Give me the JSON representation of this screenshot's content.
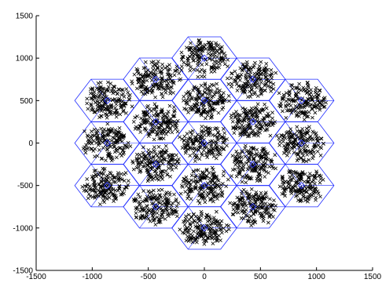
{
  "chart_data": {
    "type": "scatter",
    "title": "",
    "xlabel": "",
    "ylabel": "",
    "xlim": [
      -1500,
      1500
    ],
    "ylim": [
      -1500,
      1500
    ],
    "xticks": [
      -1500,
      -1000,
      -500,
      0,
      500,
      1000,
      1500
    ],
    "yticks": [
      -1500,
      -1000,
      -500,
      0,
      500,
      1000,
      1500
    ],
    "xtick_labels": [
      "-1500",
      "-1000",
      "-500",
      "0",
      "500",
      "1000",
      "1500"
    ],
    "ytick_labels": [
      "-1500",
      "-1000",
      "-500",
      "0",
      "500",
      "1000",
      "1500"
    ],
    "grid": false,
    "colors": {
      "cells": "#1f2bff",
      "users": "#000000"
    },
    "series": [
      {
        "kind": "site-centers",
        "marker": "diamond",
        "points": [
          [
            0,
            0
          ],
          [
            0,
            500
          ],
          [
            0,
            -500
          ],
          [
            433,
            250
          ],
          [
            433,
            -250
          ],
          [
            -433,
            250
          ],
          [
            -433,
            -250
          ],
          [
            0,
            1000
          ],
          [
            0,
            -1000
          ],
          [
            866,
            500
          ],
          [
            866,
            -500
          ],
          [
            -866,
            500
          ],
          [
            -866,
            -500
          ],
          [
            433,
            750
          ],
          [
            -433,
            750
          ],
          [
            433,
            -750
          ],
          [
            -433,
            -750
          ],
          [
            866,
            0
          ],
          [
            -866,
            0
          ]
        ]
      },
      {
        "kind": "users",
        "marker": "x",
        "points_per_cell": 160,
        "spread_radius": 255
      }
    ],
    "hex_radius": 290
  }
}
